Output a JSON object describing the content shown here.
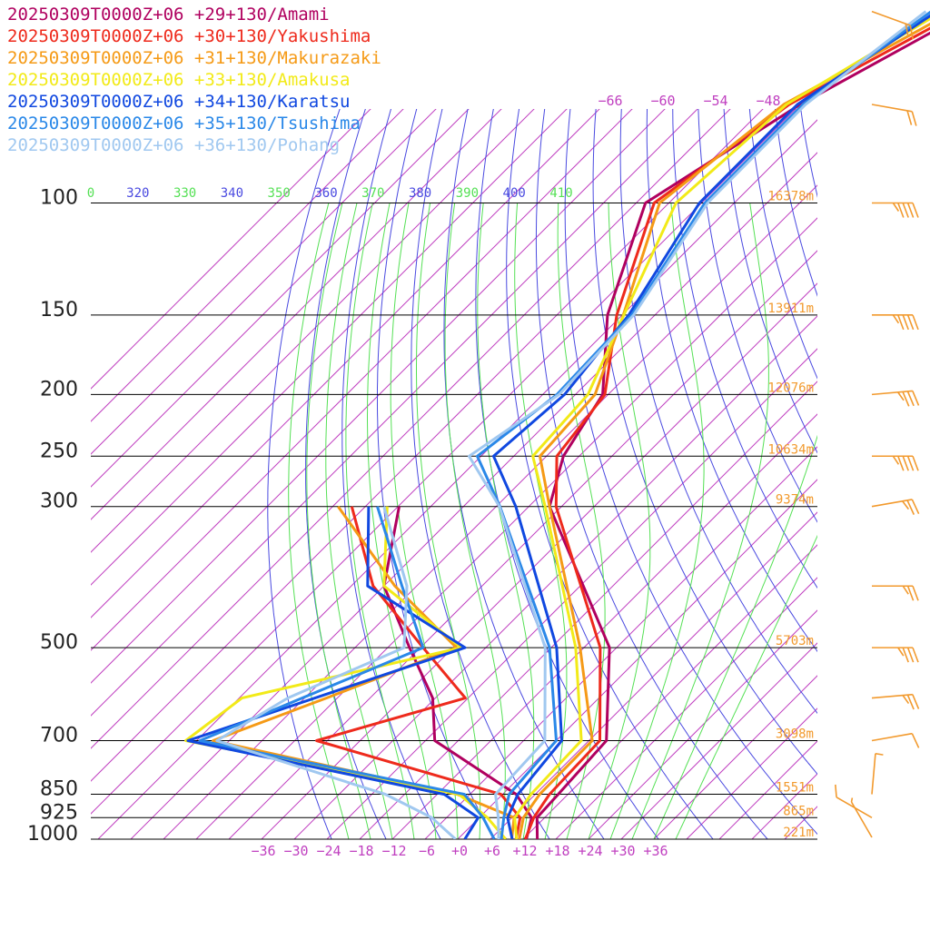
{
  "chart_data": {
    "type": "line",
    "title": "",
    "xlabel": "",
    "ylabel": "",
    "x_axis": {
      "tick_values": [
        -36,
        -30,
        -24,
        -18,
        -12,
        -6,
        0,
        6,
        12,
        18,
        24,
        30,
        36
      ],
      "tick_labels": [
        "−36",
        "−30",
        "−24",
        "−18",
        "−12",
        "−6",
        "+0",
        "+6",
        "+12",
        "+18",
        "+24",
        "+30",
        "+36"
      ]
    },
    "pressure_levels": [
      {
        "p": 100,
        "label": "100",
        "height": "16378m"
      },
      {
        "p": 150,
        "label": "150",
        "height": "13911m"
      },
      {
        "p": 200,
        "label": "200",
        "height": "12076m"
      },
      {
        "p": 250,
        "label": "250",
        "height": "10634m"
      },
      {
        "p": 300,
        "label": "300",
        "height": "9374m"
      },
      {
        "p": 500,
        "label": "500",
        "height": "5703m"
      },
      {
        "p": 700,
        "label": "700",
        "height": "3098m"
      },
      {
        "p": 850,
        "label": "850",
        "height": "1551m"
      },
      {
        "p": 925,
        "label": "925",
        "height": "865m"
      },
      {
        "p": 1000,
        "label": "1000",
        "height": "221m"
      }
    ],
    "theta_labels": [
      {
        "label": "0",
        "color": "#55e055"
      },
      {
        "label": "320",
        "color": "#4a4ae0"
      },
      {
        "label": "330",
        "color": "#55e055"
      },
      {
        "label": "340",
        "color": "#4a4ae0"
      },
      {
        "label": "350",
        "color": "#55e055"
      },
      {
        "label": "360",
        "color": "#4a4ae0"
      },
      {
        "label": "370",
        "color": "#55e055"
      },
      {
        "label": "380",
        "color": "#4a4ae0"
      },
      {
        "label": "390",
        "color": "#55e055"
      },
      {
        "label": "400",
        "color": "#4a4ae0"
      },
      {
        "label": "410",
        "color": "#55e055"
      }
    ],
    "upper_temp_labels": [
      "−66",
      "−60",
      "−54",
      "−48"
    ],
    "series": [
      {
        "name": "20250309T0000Z+06 +29+130/Amami",
        "color": "#b0005f",
        "temperature": [
          [
            1000,
            14.6
          ],
          [
            925,
            10.6
          ],
          [
            850,
            10.2
          ],
          [
            700,
            9.2
          ],
          [
            500,
            -7.3
          ],
          [
            300,
            -44.2
          ],
          [
            250,
            -50.9
          ],
          [
            200,
            -55.0
          ],
          [
            150,
            -68.7
          ],
          [
            100,
            -82.3
          ],
          [
            70,
            -72.0
          ],
          [
            50,
            -58.0
          ]
        ],
        "dewpoint": [
          [
            1000,
            12.6
          ],
          [
            925,
            9.6
          ],
          [
            850,
            2.5
          ],
          [
            700,
            -22.3
          ],
          [
            600,
            -30.5
          ],
          [
            500,
            -44.0
          ],
          [
            400,
            -60.0
          ],
          [
            300,
            -71.8
          ]
        ]
      },
      {
        "name": "20250309T0000Z+06 +30+130/Yakushima",
        "color": "#ee2a1c",
        "temperature": [
          [
            1000,
            12.4
          ],
          [
            925,
            10.0
          ],
          [
            850,
            8.6
          ],
          [
            700,
            8.0
          ],
          [
            500,
            -9.0
          ],
          [
            300,
            -43.0
          ],
          [
            250,
            -52.1
          ],
          [
            200,
            -54.6
          ],
          [
            150,
            -67.0
          ],
          [
            100,
            -80.7
          ],
          [
            70,
            -74.0
          ],
          [
            50,
            -59.5
          ]
        ],
        "dewpoint": [
          [
            1000,
            10.7
          ],
          [
            925,
            7.5
          ],
          [
            850,
            -0.3
          ],
          [
            700,
            -44.0
          ],
          [
            600,
            -24.5
          ],
          [
            500,
            -41.5
          ],
          [
            400,
            -62.0
          ],
          [
            300,
            -80.5
          ]
        ]
      },
      {
        "name": "20250309T0000Z+06 +31+130/Makurazaki",
        "color": "#f59a16",
        "temperature": [
          [
            1000,
            11.3
          ],
          [
            925,
            8.1
          ],
          [
            850,
            6.8
          ],
          [
            700,
            6.6
          ],
          [
            500,
            -12.7
          ],
          [
            300,
            -44.2
          ],
          [
            250,
            -55.2
          ],
          [
            200,
            -56.4
          ],
          [
            150,
            -65.8
          ],
          [
            100,
            -79.7
          ],
          [
            70,
            -75.0
          ],
          [
            50,
            -61.0
          ]
        ],
        "dewpoint": [
          [
            1000,
            9.9
          ],
          [
            925,
            6.4
          ],
          [
            850,
            -8.3
          ],
          [
            700,
            -63.0
          ],
          [
            600,
            -50.0
          ],
          [
            500,
            -35.4
          ],
          [
            400,
            -58.0
          ],
          [
            300,
            -83.0
          ]
        ]
      },
      {
        "name": "20250309T0000Z+06 +33+130/Amakusa",
        "color": "#f2ea18",
        "temperature": [
          [
            1000,
            10.8
          ],
          [
            925,
            6.5
          ],
          [
            850,
            5.2
          ],
          [
            700,
            4.6
          ],
          [
            500,
            -13.5
          ],
          [
            300,
            -45.0
          ],
          [
            250,
            -56.5
          ],
          [
            200,
            -57.7
          ],
          [
            150,
            -65.7
          ],
          [
            100,
            -76.7
          ],
          [
            70,
            -74.5
          ],
          [
            50,
            -63.0
          ]
        ],
        "dewpoint": [
          [
            1000,
            8.8
          ],
          [
            925,
            1.5
          ],
          [
            850,
            -8.0
          ],
          [
            700,
            -68.0
          ],
          [
            600,
            -65.5
          ],
          [
            500,
            -34.5
          ],
          [
            400,
            -60.0
          ],
          [
            300,
            -74.0
          ]
        ]
      },
      {
        "name": "20250309T0000Z+06 +34+130/Karatsu",
        "color": "#1048e0",
        "temperature": [
          [
            1000,
            10.0
          ],
          [
            925,
            5.2
          ],
          [
            850,
            2.8
          ],
          [
            700,
            1.0
          ],
          [
            500,
            -17.0
          ],
          [
            300,
            -50.4
          ],
          [
            250,
            -63.7
          ],
          [
            200,
            -62.0
          ],
          [
            150,
            -64.8
          ],
          [
            100,
            -72.4
          ],
          [
            70,
            -72.5
          ],
          [
            50,
            -64.0
          ]
        ],
        "dewpoint": [
          [
            1000,
            1.3
          ],
          [
            925,
            -0.2
          ],
          [
            850,
            -10.7
          ],
          [
            700,
            -67.6
          ],
          [
            500,
            -33.8
          ],
          [
            400,
            -63.0
          ],
          [
            300,
            -77.4
          ]
        ]
      },
      {
        "name": "20250309T0000Z+06 +35+130/Tsushima",
        "color": "#2a88e8",
        "temperature": [
          [
            1000,
            8.0
          ],
          [
            925,
            4.5
          ],
          [
            850,
            1.2
          ],
          [
            700,
            0.0
          ],
          [
            500,
            -18.3
          ],
          [
            300,
            -53.3
          ],
          [
            250,
            -66.7
          ],
          [
            200,
            -63.4
          ],
          [
            150,
            -64.3
          ],
          [
            100,
            -71.4
          ],
          [
            70,
            -71.5
          ],
          [
            50,
            -65.0
          ]
        ],
        "dewpoint": [
          [
            1000,
            6.7
          ],
          [
            925,
            0.7
          ],
          [
            850,
            -7.0
          ],
          [
            700,
            -65.4
          ],
          [
            500,
            -41.5
          ],
          [
            400,
            -56.7
          ],
          [
            300,
            -75.8
          ]
        ]
      },
      {
        "name": "20250309T0000Z+06 +36+130/Pohang",
        "color": "#a0c8f0",
        "temperature": [
          [
            1000,
            7.5
          ],
          [
            925,
            3.5
          ],
          [
            850,
            -1.3
          ],
          [
            700,
            -2.1
          ],
          [
            500,
            -19.1
          ],
          [
            300,
            -53.4
          ],
          [
            250,
            -68.2
          ],
          [
            200,
            -63.0
          ],
          [
            150,
            -63.9
          ],
          [
            100,
            -70.9
          ],
          [
            70,
            -71.0
          ],
          [
            50,
            -66.0
          ]
        ],
        "dewpoint": [
          [
            1000,
            -0.4
          ],
          [
            925,
            -8.7
          ],
          [
            850,
            -21.5
          ],
          [
            700,
            -62.3
          ],
          [
            600,
            -57.1
          ],
          [
            500,
            -45.0
          ],
          [
            400,
            -55.8
          ],
          [
            300,
            -74.6
          ]
        ]
      }
    ],
    "wind_barbs": [
      {
        "p": 50,
        "speed_kt": 20,
        "dir_deg": 250
      },
      {
        "p": 70,
        "speed_kt": 20,
        "dir_deg": 260
      },
      {
        "p": 100,
        "speed_kt": 45,
        "dir_deg": 270
      },
      {
        "p": 150,
        "speed_kt": 45,
        "dir_deg": 270
      },
      {
        "p": 200,
        "speed_kt": 35,
        "dir_deg": 275
      },
      {
        "p": 250,
        "speed_kt": 45,
        "dir_deg": 270
      },
      {
        "p": 300,
        "speed_kt": 25,
        "dir_deg": 280
      },
      {
        "p": 400,
        "speed_kt": 25,
        "dir_deg": 270
      },
      {
        "p": 500,
        "speed_kt": 35,
        "dir_deg": 270
      },
      {
        "p": 600,
        "speed_kt": 25,
        "dir_deg": 275
      },
      {
        "p": 700,
        "speed_kt": 10,
        "dir_deg": 280
      },
      {
        "p": 850,
        "speed_kt": 10,
        "dir_deg": 355
      },
      {
        "p": 925,
        "speed_kt": 10,
        "dir_deg": 60
      },
      {
        "p": 1000,
        "speed_kt": 5,
        "dir_deg": 30
      }
    ],
    "grid": true,
    "legend_position": "top-left",
    "colors": {
      "isobar": "#000000",
      "isotherm": "#c040c0",
      "dry_adiabat": "#4a4ae0",
      "moist_adiabat": "#55e055",
      "height_label": "#f29a2e",
      "wind_barb": "#f29a2e"
    }
  }
}
